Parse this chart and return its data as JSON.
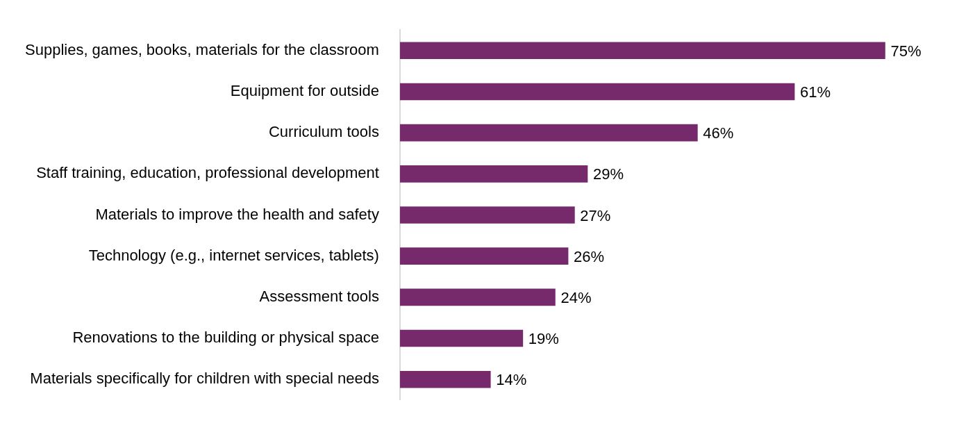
{
  "chart_data": {
    "type": "bar",
    "orientation": "horizontal",
    "categories": [
      "Supplies, games, books, materials for the classroom",
      "Equipment for outside",
      "Curriculum tools",
      "Staff training, education, professional development",
      "Materials to improve the health and safety",
      "Technology (e.g., internet services, tablets)",
      "Assessment tools",
      "Renovations to the building or physical space",
      "Materials specifically for children with special needs"
    ],
    "values": [
      75,
      61,
      46,
      29,
      27,
      26,
      24,
      19,
      14
    ],
    "value_labels": [
      "75%",
      "61%",
      "46%",
      "29%",
      "27%",
      "26%",
      "24%",
      "19%",
      "14%"
    ],
    "color": "#772a6b",
    "tick_labels": "y",
    "legend": false
  }
}
